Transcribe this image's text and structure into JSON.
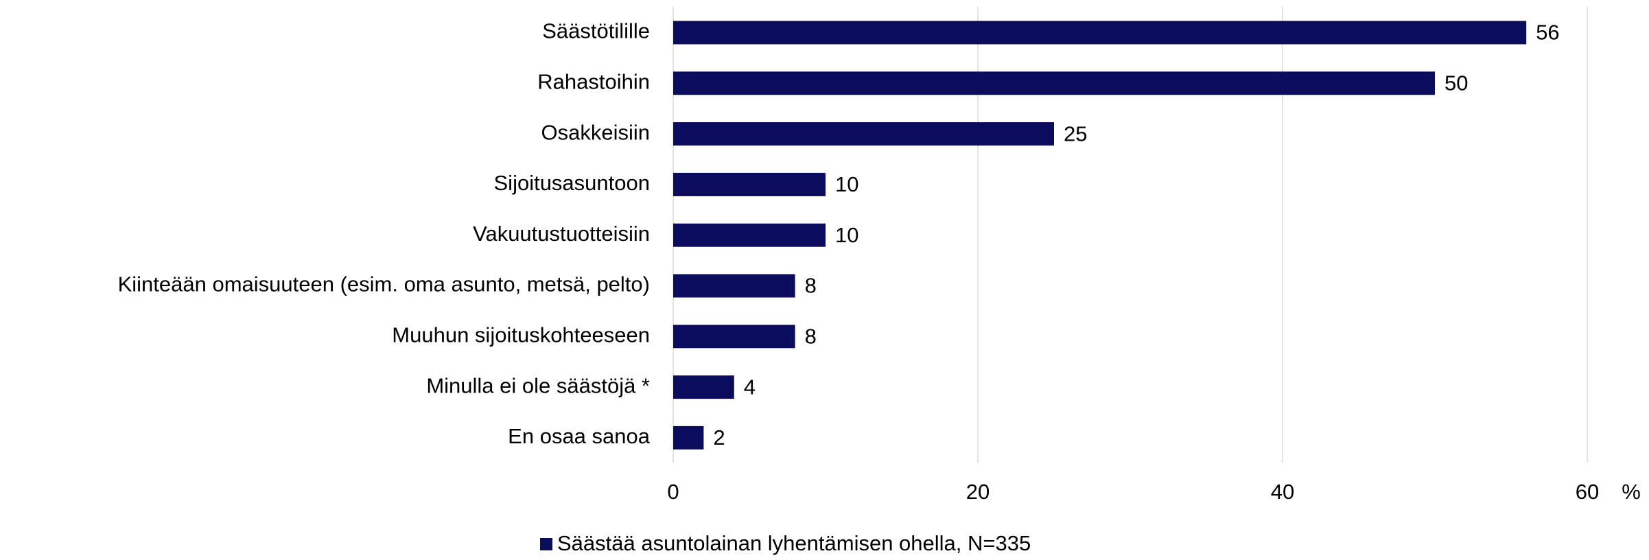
{
  "chart_data": {
    "type": "bar",
    "orientation": "horizontal",
    "categories": [
      "Säästötilille",
      "Rahastoihin",
      "Osakkeisiin",
      "Sijoitusasuntoon",
      "Vakuutustuotteisiin",
      "Kiinteään omaisuuteen (esim. oma asunto, metsä, pelto)",
      "Muuhun sijoituskohteeseen",
      "Minulla ei ole säästöjä *",
      "En osaa sanoa"
    ],
    "series": [
      {
        "name": "Säästää asuntolainan lyhentämisen ohella, N=335",
        "color": "#0c0c5e",
        "values": [
          56,
          50,
          25,
          10,
          10,
          8,
          8,
          4,
          2
        ]
      }
    ],
    "x_label": "%",
    "xlim": [
      0,
      60
    ],
    "xticks": [
      0,
      20,
      40,
      60
    ],
    "grid": true,
    "legend": "bottom"
  }
}
